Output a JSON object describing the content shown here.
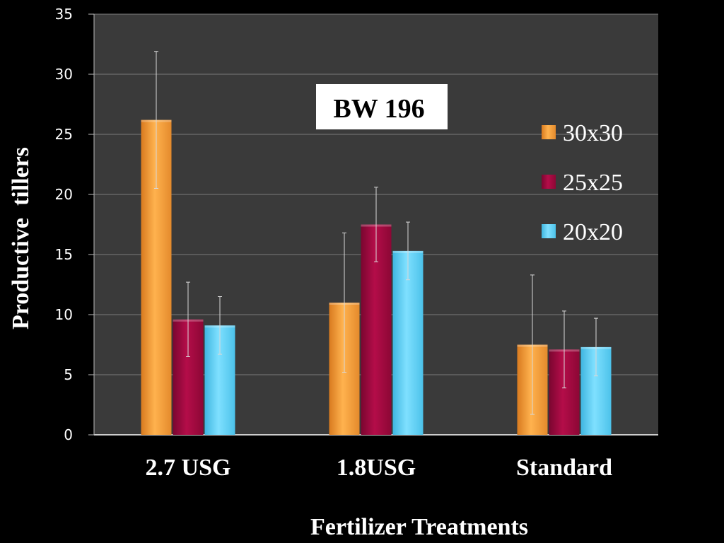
{
  "chart_data": {
    "type": "bar",
    "title": "",
    "annotation": "BW 196",
    "xlabel": "Fertilizer Treatments",
    "ylabel": "Productive  tillers",
    "ylim": [
      0,
      35
    ],
    "yticks": [
      0,
      5,
      10,
      15,
      20,
      25,
      30,
      35
    ],
    "grid": true,
    "legend_position": "right",
    "categories": [
      "2.7 USG",
      "1.8USG",
      "Standard"
    ],
    "series": [
      {
        "name": "30x30",
        "color": "#f9a13a",
        "values": [
          26.2,
          11.0,
          7.5
        ],
        "errors": [
          5.7,
          5.8,
          5.8
        ]
      },
      {
        "name": "25x25",
        "color": "#a3093f",
        "values": [
          9.6,
          17.5,
          7.1
        ],
        "errors": [
          3.1,
          3.1,
          3.2
        ]
      },
      {
        "name": "20x20",
        "color": "#64d4f6",
        "values": [
          9.1,
          15.3,
          7.3
        ],
        "errors": [
          2.4,
          2.4,
          2.4
        ]
      }
    ]
  }
}
